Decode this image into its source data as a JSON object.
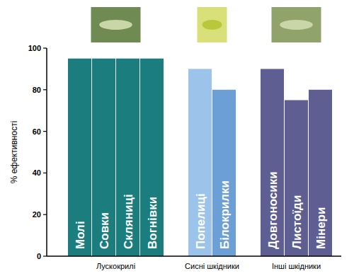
{
  "chart_data": {
    "type": "bar",
    "y_label": "% ефективності",
    "categories": [
      "Молі",
      "Совки",
      "Скляниці",
      "Вогнівки",
      "Попелиці",
      "Білокрилки",
      "Довгоносики",
      "Листоїди",
      "Мінери"
    ],
    "values": [
      95,
      95,
      95,
      95,
      90,
      80,
      90,
      75,
      80
    ],
    "colors": [
      "#1b7d7d",
      "#1b7d7d",
      "#1b7d7d",
      "#1b7d7d",
      "#9cc3ea",
      "#6c9fd6",
      "#5e5e92",
      "#5e5e92",
      "#5e5e92"
    ],
    "groups": [
      {
        "label": "Лускокрилі",
        "categories": [
          "Молі",
          "Совки",
          "Скляниці",
          "Вогнівки"
        ]
      },
      {
        "label": "Сисні шкідники",
        "categories": [
          "Попелиці",
          "Білокрилки"
        ]
      },
      {
        "label": "Інші шкідники",
        "categories": [
          "Довгоносики",
          "Листоїди",
          "Мінери"
        ]
      }
    ],
    "ylim": [
      0,
      100
    ],
    "yticks": [
      0,
      20,
      40,
      60,
      80,
      100
    ],
    "grid": false
  }
}
